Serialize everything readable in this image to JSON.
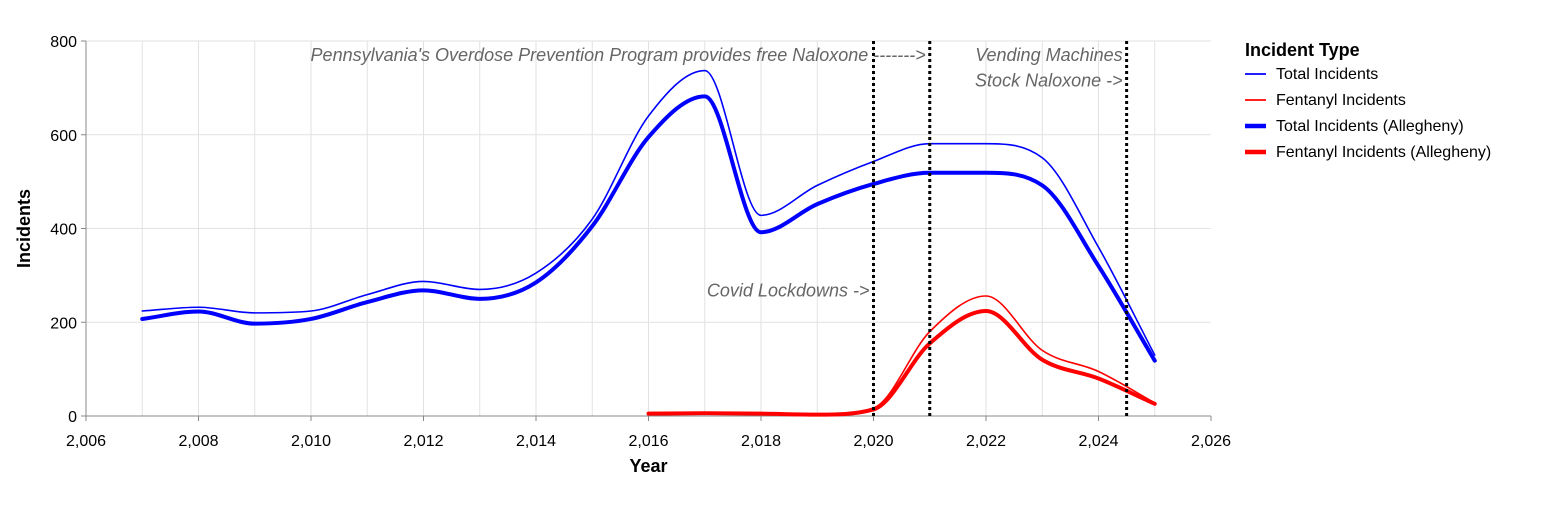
{
  "chart_data": {
    "type": "line",
    "xlabel": "Year",
    "ylabel": "Incidents",
    "xlim": [
      2006,
      2026
    ],
    "ylim": [
      0,
      800
    ],
    "x_ticks": [
      2006,
      2008,
      2010,
      2012,
      2014,
      2016,
      2018,
      2020,
      2022,
      2024,
      2026
    ],
    "x_tick_labels": [
      "2,006",
      "2,008",
      "2,010",
      "2,012",
      "2,014",
      "2,016",
      "2,018",
      "2,020",
      "2,022",
      "2,024",
      "2,026"
    ],
    "y_ticks": [
      0,
      200,
      400,
      600,
      800
    ],
    "y_tick_labels": [
      "0",
      "200",
      "400",
      "600",
      "800"
    ],
    "grid": true,
    "legend": {
      "title": "Incident Type",
      "position": "right"
    },
    "series": [
      {
        "name": "Total Incidents",
        "color": "#0000ff",
        "style": "thin",
        "x": [
          2007,
          2008,
          2009,
          2010,
          2011,
          2012,
          2013,
          2014,
          2015,
          2016,
          2017,
          2018,
          2019,
          2020,
          2021,
          2022,
          2023,
          2024,
          2025
        ],
        "values": [
          224,
          232,
          220,
          224,
          259,
          287,
          270,
          305,
          420,
          640,
          737,
          428,
          492,
          543,
          581,
          581,
          551,
          360,
          130
        ]
      },
      {
        "name": "Fentanyl Incidents",
        "color": "#ff0000",
        "style": "thin",
        "x": [
          2016,
          2017,
          2018,
          2019,
          2020,
          2021,
          2022,
          2023,
          2024,
          2025
        ],
        "values": [
          7,
          8,
          6,
          4,
          17,
          180,
          256,
          140,
          95,
          28
        ]
      },
      {
        "name": "Total Incidents (Allegheny)",
        "color": "#0000ff",
        "style": "thick",
        "x": [
          2007,
          2008,
          2009,
          2010,
          2011,
          2012,
          2013,
          2014,
          2015,
          2016,
          2017,
          2018,
          2019,
          2020,
          2021,
          2022,
          2023,
          2024,
          2025
        ],
        "values": [
          207,
          223,
          197,
          207,
          243,
          268,
          250,
          285,
          405,
          595,
          682,
          392,
          452,
          495,
          519,
          519,
          492,
          320,
          118
        ]
      },
      {
        "name": "Fentanyl Incidents (Allegheny)",
        "color": "#ff0000",
        "style": "thick",
        "x": [
          2016,
          2017,
          2018,
          2019,
          2020,
          2021,
          2022,
          2023,
          2024,
          2025
        ],
        "values": [
          5,
          6,
          5,
          3,
          14,
          155,
          224,
          120,
          80,
          26
        ]
      }
    ],
    "annotations": [
      {
        "x": 2020,
        "text": "Covid Lockdowns ->",
        "y": 268
      },
      {
        "x": 2021,
        "text": "Pennsylvania's Overdose Prevention Program provides free Naloxone ------->",
        "y": 770
      },
      {
        "x": 2024.5,
        "text": "Vending Machines",
        "y": 770
      },
      {
        "x": 2024.5,
        "text": "Stock Naloxone ->",
        "y": 716
      }
    ],
    "vertical_lines": [
      2020,
      2021,
      2024.5
    ]
  }
}
